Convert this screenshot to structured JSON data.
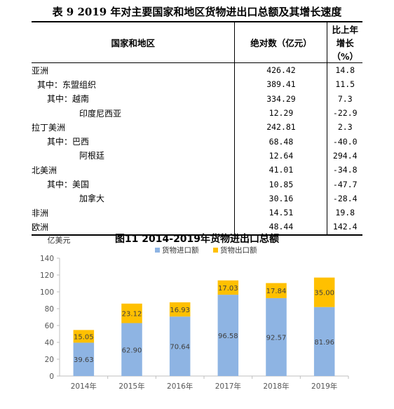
{
  "table": {
    "caption": "表 9   2019 年对主要国家和地区货物进出口总额及其增长速度",
    "headers": [
      "国家和地区",
      "绝对数（亿元）",
      "比上年增长（%）"
    ],
    "rows": [
      {
        "name": "亚洲",
        "value": "426.42",
        "growth": "14.8",
        "indent": 0
      },
      {
        "name": "其中：东盟组织",
        "value": "389.41",
        "growth": "11.5",
        "indent": 1
      },
      {
        "name": "其中：越南",
        "value": "334.29",
        "growth": "7.3",
        "indent": 2
      },
      {
        "name": "印度尼西亚",
        "value": "12.29",
        "growth": "-22.9",
        "indent": 3
      },
      {
        "name": "拉丁美洲",
        "value": "242.81",
        "growth": "2.3",
        "indent": 0
      },
      {
        "name": "其中：巴西",
        "value": "68.48",
        "growth": "-40.0",
        "indent": 2
      },
      {
        "name": "阿根廷",
        "value": "12.64",
        "growth": "294.4",
        "indent": 3
      },
      {
        "name": "北美洲",
        "value": "41.01",
        "growth": "-34.8",
        "indent": 0
      },
      {
        "name": "其中：美国",
        "value": "10.85",
        "growth": "-47.7",
        "indent": 2
      },
      {
        "name": "加拿大",
        "value": "30.16",
        "growth": "-28.4",
        "indent": 3
      },
      {
        "name": "非洲",
        "value": "14.51",
        "growth": "19.8",
        "indent": 0
      },
      {
        "name": "欧洲",
        "value": "48.44",
        "growth": "142.4",
        "indent": 0
      }
    ]
  },
  "chart_data": {
    "type": "bar",
    "stacked": true,
    "title": "图11  2014-2019年货物进出口总额",
    "ylabel": "亿美元",
    "categories": [
      "2014年",
      "2015年",
      "2016年",
      "2017年",
      "2018年",
      "2019年"
    ],
    "series": [
      {
        "name": "货物进口额",
        "color": "#8EB4E3",
        "values": [
          39.63,
          62.9,
          70.64,
          96.58,
          92.57,
          81.96
        ]
      },
      {
        "name": "货物出口额",
        "color": "#FFC000",
        "values": [
          15.05,
          23.12,
          16.93,
          17.03,
          17.84,
          35.0
        ]
      }
    ],
    "ylim": [
      0,
      140
    ],
    "yticks": [
      0,
      20,
      40,
      60,
      80,
      100,
      120,
      140
    ],
    "grid": false,
    "legend": "top"
  }
}
